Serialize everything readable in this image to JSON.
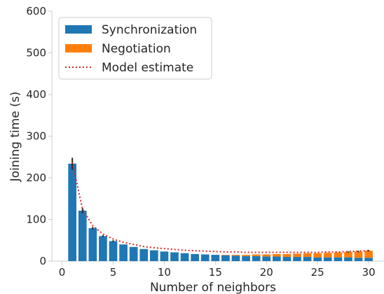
{
  "chart_data": {
    "type": "bar",
    "stacked": true,
    "xlabel": "Number of neighbors",
    "ylabel": "Joining time (s)",
    "xlim": [
      -1,
      31.5
    ],
    "ylim": [
      0,
      600
    ],
    "xticks": [
      0,
      5,
      10,
      15,
      20,
      25,
      30
    ],
    "yticks": [
      0,
      100,
      200,
      300,
      400,
      500,
      600
    ],
    "grid": false,
    "legend_position": "top-left",
    "x": [
      1,
      2,
      3,
      4,
      5,
      6,
      7,
      8,
      9,
      10,
      11,
      12,
      13,
      14,
      15,
      16,
      17,
      18,
      19,
      20,
      21,
      22,
      23,
      24,
      25,
      26,
      27,
      28,
      29,
      30
    ],
    "series": [
      {
        "name": "Synchronization",
        "kind": "bar",
        "color": "#1f77b4",
        "values": [
          234,
          121,
          79,
          60,
          48,
          40,
          34,
          29,
          26,
          23,
          21,
          19,
          17,
          16,
          15,
          14,
          13,
          12,
          12,
          11,
          11,
          10,
          10,
          10,
          9,
          9,
          9,
          9,
          8,
          8
        ],
        "errors": [
          14,
          6,
          3,
          2,
          2,
          0,
          0,
          0,
          0,
          0,
          0,
          0,
          0,
          0,
          0,
          0,
          0,
          0,
          0,
          0,
          0,
          0,
          0,
          0,
          0,
          0,
          0,
          0,
          0,
          0
        ]
      },
      {
        "name": "Negotiation",
        "kind": "bar",
        "color": "#ff7f0e",
        "values": [
          0,
          0,
          0,
          0,
          0,
          0,
          0,
          0,
          0,
          0,
          0,
          0,
          0,
          0,
          0,
          1,
          2,
          3,
          4,
          5,
          6,
          7,
          8,
          9,
          10,
          11,
          12,
          13,
          15,
          17
        ]
      },
      {
        "name": "Model estimate",
        "kind": "line",
        "style": "dotted",
        "color": "#d62728",
        "values": [
          237,
          125,
          85,
          65,
          53,
          45,
          40,
          35,
          32,
          30,
          28,
          26,
          25,
          24,
          23,
          22,
          22,
          21,
          21,
          21,
          21,
          21,
          21,
          21,
          21,
          22,
          22,
          23,
          24,
          25
        ]
      }
    ]
  }
}
